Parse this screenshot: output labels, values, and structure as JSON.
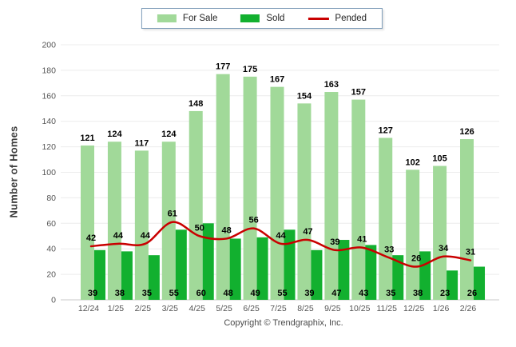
{
  "legend": {
    "for_sale": "For Sale",
    "sold": "Sold",
    "pended": "Pended"
  },
  "footer": {
    "copyright": "Copyright © Trendgraphix, Inc."
  },
  "chart_data": {
    "type": "bar",
    "title": "",
    "xlabel": "",
    "ylabel": "Number of Homes",
    "ylim": [
      0,
      200
    ],
    "ytick_step": 20,
    "grid": "horizontal",
    "legend_position": "top-center",
    "categories": [
      "12/24",
      "1/25",
      "2/25",
      "3/25",
      "4/25",
      "5/25",
      "6/25",
      "7/25",
      "8/25",
      "9/25",
      "10/25",
      "11/25",
      "12/25",
      "1/26",
      "2/26"
    ],
    "series": [
      {
        "name": "For Sale",
        "type": "bar",
        "color": "#a1d999",
        "values": [
          121,
          124,
          117,
          124,
          148,
          177,
          175,
          167,
          154,
          163,
          157,
          127,
          102,
          105,
          126
        ]
      },
      {
        "name": "Sold",
        "type": "bar",
        "color": "#12b02f",
        "values": [
          39,
          38,
          35,
          55,
          60,
          48,
          49,
          55,
          39,
          47,
          43,
          35,
          38,
          23,
          26
        ]
      }
    ],
    "line_series": {
      "name": "Pended",
      "type": "line",
      "color": "#c90000",
      "values": [
        42,
        44,
        44,
        61,
        50,
        48,
        56,
        44,
        47,
        39,
        41,
        33,
        26,
        34,
        31
      ]
    },
    "colors": {
      "gridline": "#ececec",
      "axis_line": "#c8c8c8",
      "tick_text": "#555555",
      "data_label": "#000000"
    }
  }
}
